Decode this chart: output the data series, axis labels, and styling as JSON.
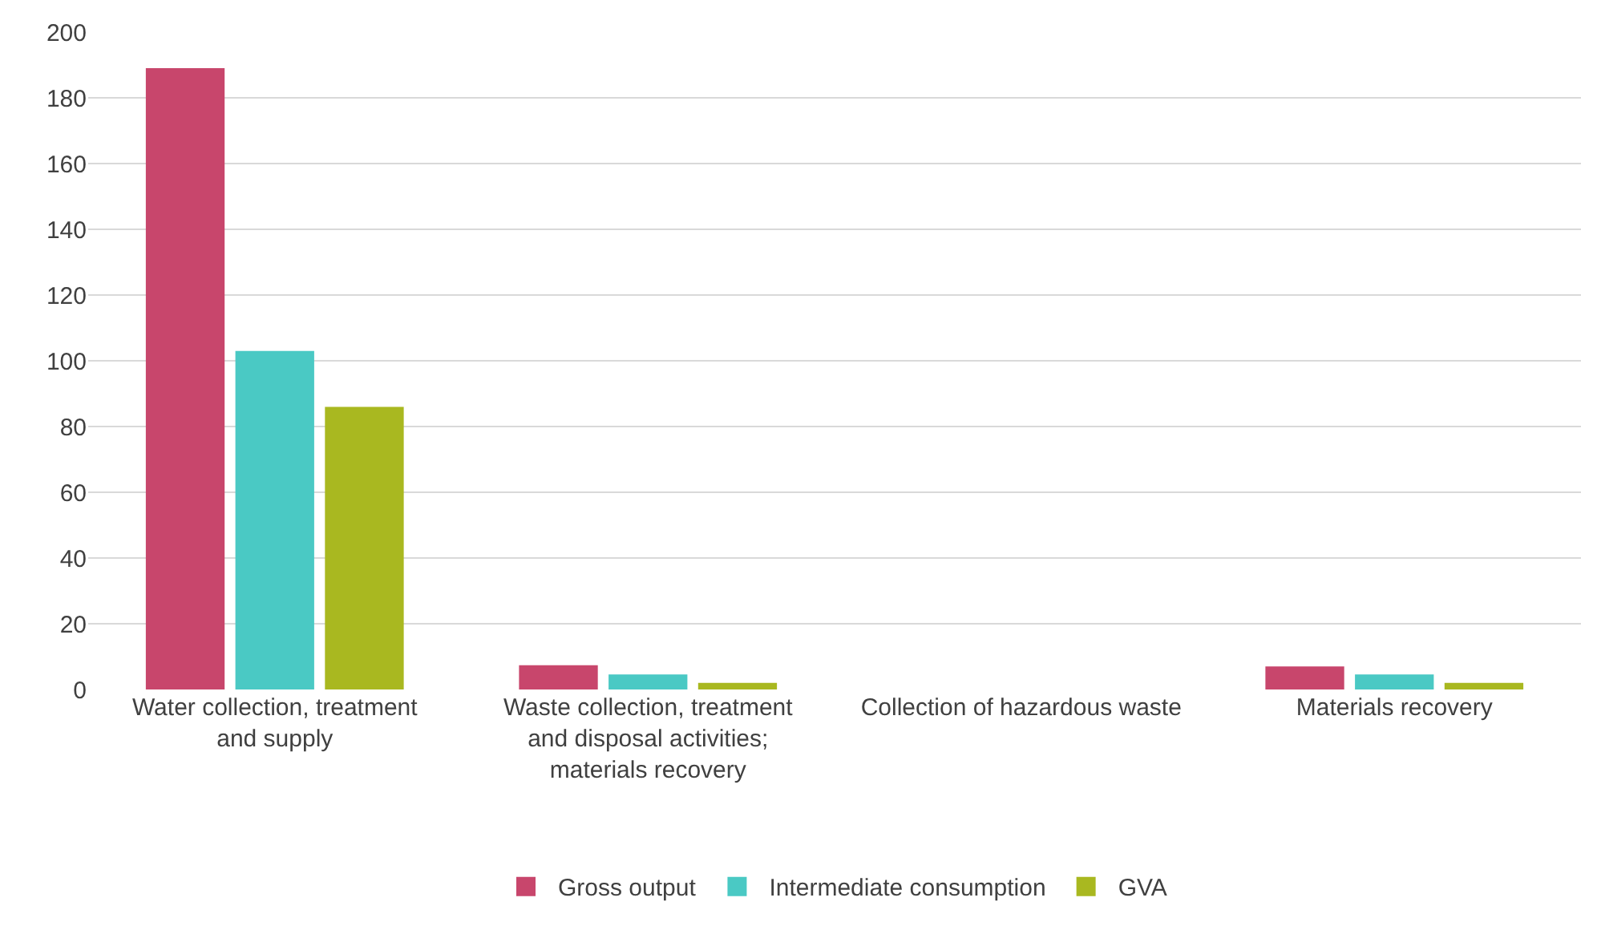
{
  "chart_data": {
    "type": "bar",
    "categories": [
      "Water collection, treatment and supply",
      "Waste collection, treatment and disposal activities; materials recovery",
      "Collection of hazardous waste",
      "Materials recovery"
    ],
    "series": [
      {
        "name": "Gross output",
        "color": "#c8466c",
        "values": [
          189,
          7.4,
          0,
          7
        ]
      },
      {
        "name": "Intermediate consumption",
        "color": "#4ac9c4",
        "values": [
          103,
          4.6,
          0,
          4.6
        ]
      },
      {
        "name": "GVA",
        "color": "#a9b820",
        "values": [
          86,
          2,
          0,
          2
        ]
      }
    ],
    "ylim": [
      0,
      200
    ],
    "yticks": [
      0,
      20,
      40,
      60,
      80,
      100,
      120,
      140,
      160,
      180,
      200
    ],
    "grid": "y",
    "legend": "bottom"
  }
}
